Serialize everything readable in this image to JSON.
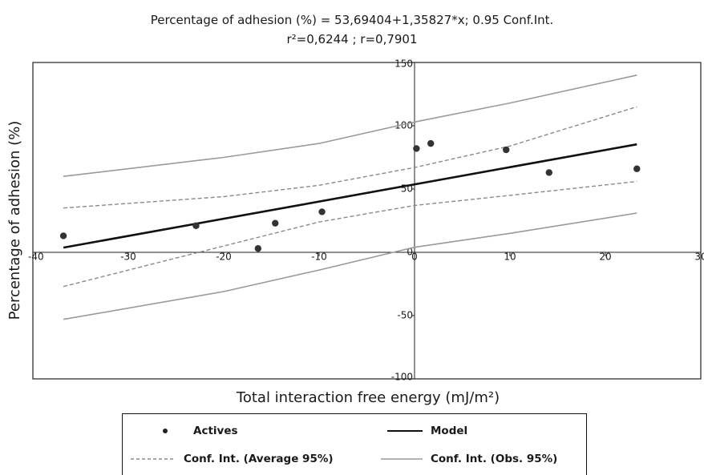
{
  "chart_data": {
    "type": "scatter",
    "title": "Percentage of adhesion (%) = 53,69404+1,35827*x;  0.95 Conf.Int.",
    "subtitle": "r²=0,6244 ; r=0,7901",
    "xlabel": "Total interaction free energy (mJ/m²)",
    "ylabel": "Percentage of adhesion (%)",
    "xlim": [
      -40,
      30
    ],
    "ylim": [
      -100,
      150
    ],
    "xticks": [
      -40,
      -30,
      -20,
      -10,
      0,
      10,
      20,
      30
    ],
    "yticks": [
      -100,
      -50,
      0,
      50,
      100,
      150
    ],
    "xtick_labels": [
      "-40",
      "-30",
      "-20",
      "-10",
      "0",
      "10",
      "20",
      "30"
    ],
    "ytick_labels": [
      "-100",
      "-50",
      "0",
      "50",
      "100",
      "150"
    ],
    "grid": false,
    "legend_position": "bottom",
    "series": [
      {
        "name": "Actives",
        "kind": "points",
        "color": "#333333",
        "points": [
          [
            -36.8,
            13
          ],
          [
            -22.9,
            21
          ],
          [
            -16.4,
            3
          ],
          [
            -14.6,
            23
          ],
          [
            -9.7,
            32
          ],
          [
            0.2,
            82
          ],
          [
            1.7,
            86
          ],
          [
            9.6,
            81
          ],
          [
            14.1,
            63
          ],
          [
            23.3,
            66
          ]
        ]
      },
      {
        "name": "Model",
        "kind": "line",
        "color": "#111111",
        "intercept": 53.69404,
        "slope": 1.35827,
        "x_range": [
          -36.8,
          23.3
        ]
      },
      {
        "name": "Conf. Int. (Average 95%)",
        "kind": "band-dashed",
        "color": "#8a8a8a",
        "upper": [
          [
            -36.8,
            35
          ],
          [
            -20,
            44
          ],
          [
            -10,
            53
          ],
          [
            0,
            67
          ],
          [
            10,
            84
          ],
          [
            23.3,
            115
          ]
        ],
        "lower": [
          [
            -36.8,
            -27
          ],
          [
            -20,
            5
          ],
          [
            -10,
            24
          ],
          [
            0,
            37
          ],
          [
            10,
            45
          ],
          [
            23.3,
            56
          ]
        ]
      },
      {
        "name": "Conf. Int. (Obs. 95%)",
        "kind": "band-solid",
        "color": "#9a9a9a",
        "upper": [
          [
            -36.8,
            60
          ],
          [
            -20,
            75
          ],
          [
            -10,
            86
          ],
          [
            0,
            103
          ],
          [
            10,
            118
          ],
          [
            23.3,
            140
          ]
        ],
        "lower": [
          [
            -36.8,
            -53
          ],
          [
            -20,
            -31
          ],
          [
            -10,
            -14
          ],
          [
            0,
            4
          ],
          [
            10,
            15
          ],
          [
            23.3,
            31
          ]
        ]
      }
    ]
  },
  "legend": {
    "actives": "Actives",
    "model": "Model",
    "conf_avg": "Conf. Int. (Average 95%)",
    "conf_obs": "Conf. Int. (Obs. 95%)"
  }
}
